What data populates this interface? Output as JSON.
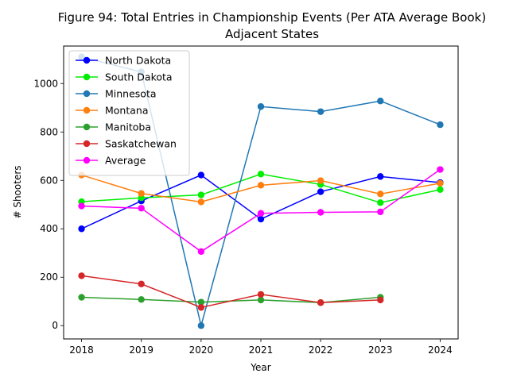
{
  "chart_data": {
    "type": "line",
    "title": "Figure 94: Total Entries in Championship Events (Per ATA Average Book)",
    "subtitle": "Adjacent States",
    "xlabel": "Year",
    "ylabel": "# Shooters",
    "x": [
      2018,
      2019,
      2020,
      2021,
      2022,
      2023,
      2024
    ],
    "xlim": [
      2017.7,
      2024.3
    ],
    "ylim": [
      -55,
      1155
    ],
    "yticks": [
      0,
      200,
      400,
      600,
      800,
      1000
    ],
    "grid": false,
    "legend_position": "top-left",
    "series": [
      {
        "name": "North Dakota",
        "color": "#0000ff",
        "values": [
          400,
          515,
          622,
          440,
          553,
          616,
          591
        ]
      },
      {
        "name": "South Dakota",
        "color": "#00ee00",
        "values": [
          512,
          528,
          540,
          626,
          583,
          508,
          562
        ]
      },
      {
        "name": "Minnesota",
        "color": "#1f77b4",
        "values": [
          1110,
          1048,
          0,
          905,
          884,
          928,
          830
        ]
      },
      {
        "name": "Montana",
        "color": "#ff7f0e",
        "values": [
          622,
          546,
          511,
          580,
          599,
          544,
          588
        ]
      },
      {
        "name": "Manitoba",
        "color": "#2ca02c",
        "values": [
          117,
          108,
          97,
          106,
          95,
          117,
          null
        ]
      },
      {
        "name": "Saskatchewan",
        "color": "#d62728",
        "values": [
          206,
          172,
          75,
          129,
          95,
          106,
          null
        ]
      },
      {
        "name": "Average",
        "color": "#ff00ff",
        "values": [
          494,
          485,
          306,
          464,
          468,
          470,
          645
        ]
      }
    ]
  }
}
